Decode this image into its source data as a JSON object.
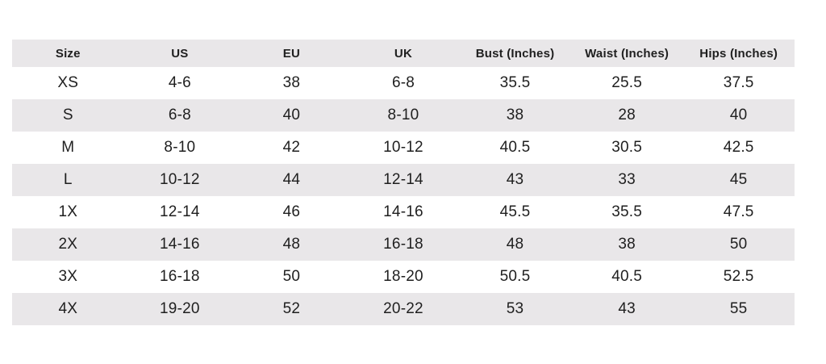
{
  "table": {
    "columns": [
      "Size",
      "US",
      "EU",
      "UK",
      "Bust (Inches)",
      "Waist (Inches)",
      "Hips (Inches)"
    ],
    "rows": [
      [
        "XS",
        "4-6",
        "38",
        "6-8",
        "35.5",
        "25.5",
        "37.5"
      ],
      [
        "S",
        "6-8",
        "40",
        "8-10",
        "38",
        "28",
        "40"
      ],
      [
        "M",
        "8-10",
        "42",
        "10-12",
        "40.5",
        "30.5",
        "42.5"
      ],
      [
        "L",
        "10-12",
        "44",
        "12-14",
        "43",
        "33",
        "45"
      ],
      [
        "1X",
        "12-14",
        "46",
        "14-16",
        "45.5",
        "35.5",
        "47.5"
      ],
      [
        "2X",
        "14-16",
        "48",
        "16-18",
        "48",
        "38",
        "50"
      ],
      [
        "3X",
        "16-18",
        "50",
        "18-20",
        "50.5",
        "40.5",
        "52.5"
      ],
      [
        "4X",
        "19-20",
        "52",
        "20-22",
        "53",
        "43",
        "55"
      ]
    ]
  },
  "colors": {
    "stripe": "#e9e7e9",
    "text": "#1f1f1f",
    "background": "#ffffff"
  }
}
